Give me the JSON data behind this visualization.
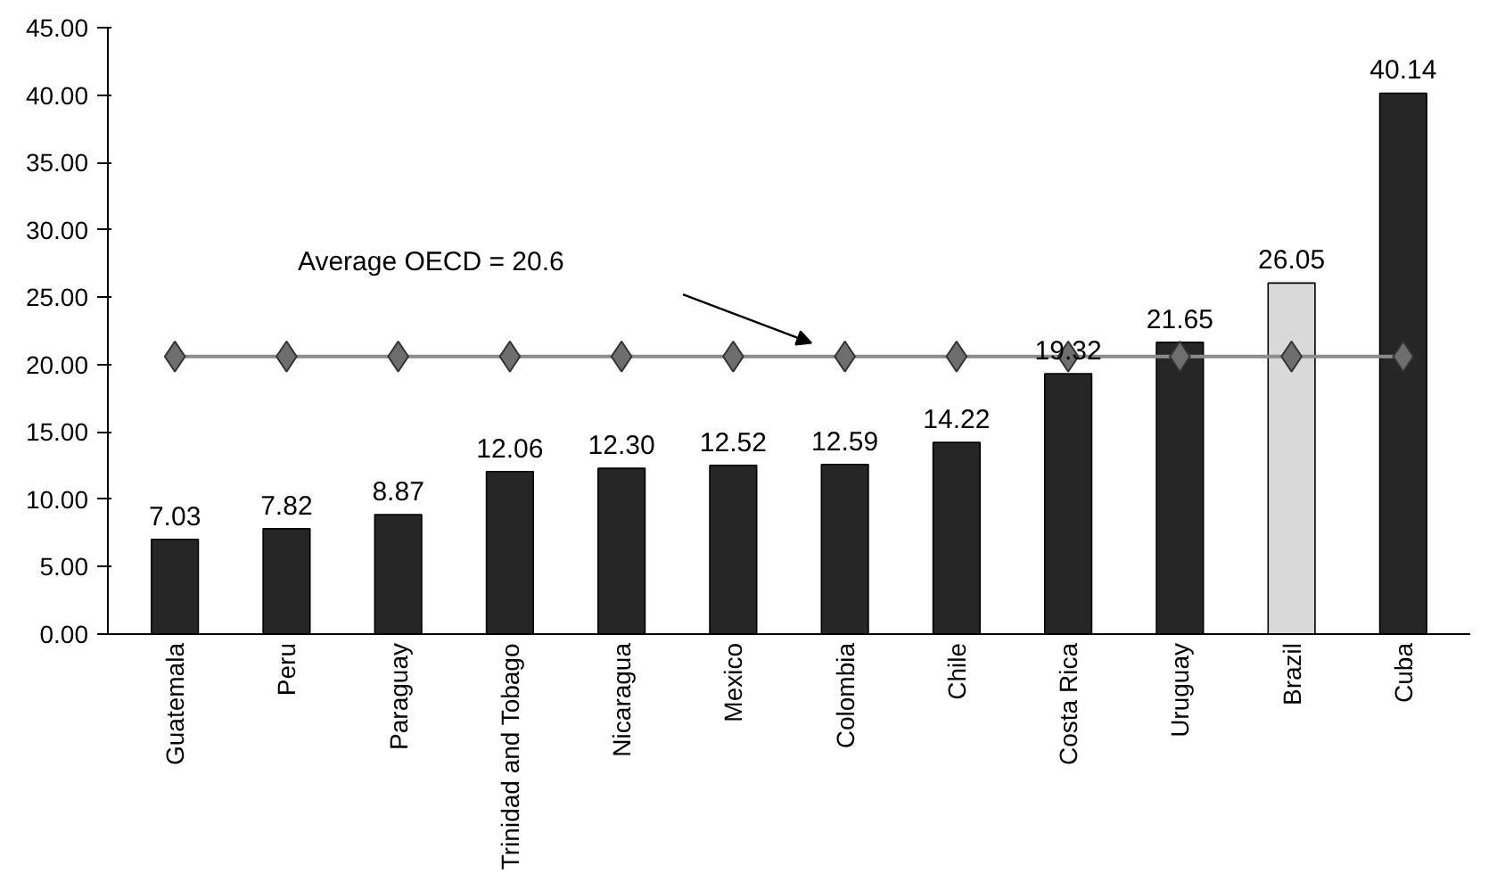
{
  "chart_data": {
    "type": "bar",
    "categories": [
      "Guatemala",
      "Peru",
      "Paraguay",
      "Trinidad and Tobago",
      "Nicaragua",
      "Mexico",
      "Colombia",
      "Chile",
      "Costa Rica",
      "Uruguay",
      "Brazil",
      "Cuba"
    ],
    "series": [
      {
        "colors": [
          "#262626",
          "#262626",
          "#262626",
          "#262626",
          "#262626",
          "#262626",
          "#262626",
          "#262626",
          "#262626",
          "#262626",
          "#d9d9d9",
          "#262626"
        ],
        "values": [
          7.03,
          7.82,
          8.87,
          12.06,
          12.3,
          12.52,
          12.59,
          14.22,
          19.32,
          21.65,
          26.05,
          40.14
        ],
        "value_labels": [
          "7.03",
          "7.82",
          "8.87",
          "12.06",
          "12.30",
          "12.52",
          "12.59",
          "14.22",
          "19.32",
          "21.65",
          "26.05",
          "40.14"
        ]
      },
      {
        "type": "line",
        "color": "#8c8c8c",
        "marker": "diamond",
        "values": [
          20.6,
          20.6,
          20.6,
          20.6,
          20.6,
          20.6,
          20.6,
          20.6,
          20.6,
          20.6,
          20.6,
          20.6
        ]
      }
    ],
    "annotations": [
      "Average OECD = 20.6"
    ],
    "ylim": [
      0,
      45
    ],
    "yticks": [
      {
        "value": 0,
        "label": "0.00"
      },
      {
        "value": 5,
        "label": "5.00"
      },
      {
        "value": 10,
        "label": "10.00"
      },
      {
        "value": 15,
        "label": "15.00"
      },
      {
        "value": 20,
        "label": "20.00"
      },
      {
        "value": 25,
        "label": "25.00"
      },
      {
        "value": 30,
        "label": "30.00"
      },
      {
        "value": 35,
        "label": "35.00"
      },
      {
        "value": 40,
        "label": "40.00"
      },
      {
        "value": 45,
        "label": "45.00"
      }
    ],
    "grid": false
  }
}
